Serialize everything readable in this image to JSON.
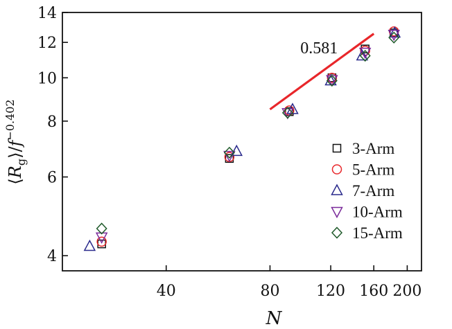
{
  "chart_data": {
    "type": "scatter",
    "x_scale": "log",
    "y_scale": "log",
    "xlabel": "N",
    "ylabel_parts": {
      "open": "⟨",
      "var": "R",
      "sub": "g",
      "close": "⟩/",
      "f": "f",
      "exp": "−0.402"
    },
    "xlim": [
      20,
      220
    ],
    "ylim": [
      3.7,
      14
    ],
    "x_ticks": [
      {
        "value": 40,
        "label": "40"
      },
      {
        "value": 80,
        "label": "80"
      },
      {
        "value": 120,
        "label": "120"
      },
      {
        "value": 160,
        "label": "160"
      },
      {
        "value": 200,
        "label": "200"
      }
    ],
    "y_ticks": [
      {
        "value": 4,
        "label": "4"
      },
      {
        "value": 6,
        "label": "6"
      },
      {
        "value": 8,
        "label": "8"
      },
      {
        "value": 10,
        "label": "10"
      },
      {
        "value": 12,
        "label": "12"
      },
      {
        "value": 14,
        "label": "14"
      }
    ],
    "legend_position": "bottom-right",
    "series": [
      {
        "name": "3-Arm",
        "marker": "square",
        "color": "#111111",
        "x": [
          26,
          61,
          91,
          121,
          151,
          183
        ],
        "y": [
          4.25,
          6.6,
          8.4,
          10.0,
          11.6,
          12.6
        ]
      },
      {
        "name": "5-Arm",
        "marker": "circle",
        "color": "#e8262a",
        "x": [
          26,
          61,
          91,
          121,
          151,
          183
        ],
        "y": [
          4.3,
          6.65,
          8.45,
          10.0,
          11.5,
          12.7
        ]
      },
      {
        "name": "7-Arm",
        "marker": "triangle-up",
        "color": "#2a2a8c",
        "x": [
          24,
          64,
          93,
          120,
          148,
          184
        ],
        "y": [
          4.2,
          6.85,
          8.5,
          9.85,
          11.2,
          12.6
        ]
      },
      {
        "name": "10-Arm",
        "marker": "triangle-down",
        "color": "#7a2a9a",
        "x": [
          26,
          61,
          90,
          121,
          151,
          183
        ],
        "y": [
          4.4,
          6.7,
          8.35,
          9.9,
          11.4,
          12.5
        ]
      },
      {
        "name": "15-Arm",
        "marker": "diamond",
        "color": "#1f5a2a",
        "x": [
          26,
          61,
          90,
          121,
          151,
          183
        ],
        "y": [
          4.6,
          6.8,
          8.35,
          9.85,
          11.2,
          12.3
        ]
      }
    ],
    "fit_line": {
      "color": "#e8262a",
      "x": [
        80,
        160
      ],
      "y": [
        8.5,
        12.55
      ]
    },
    "annotation": {
      "text": "0.581",
      "x": 98,
      "y": 11.35
    }
  }
}
